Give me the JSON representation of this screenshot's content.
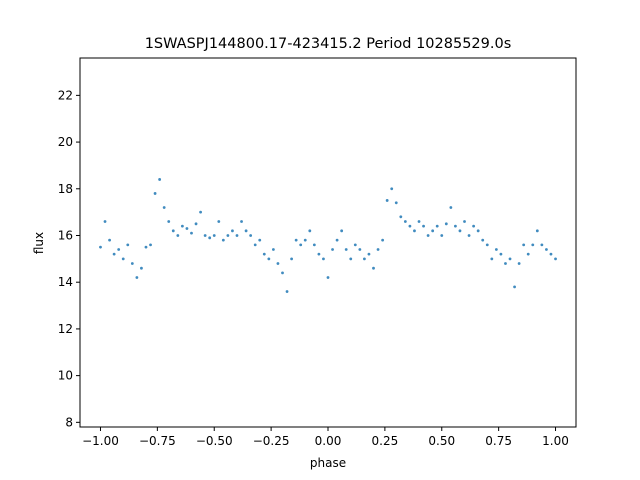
{
  "chart_data": {
    "type": "scatter",
    "title": "1SWASPJ144800.17-423415.2 Period 10285529.0s",
    "xlabel": "phase",
    "ylabel": "flux",
    "xlim": [
      -1.09,
      1.09
    ],
    "ylim": [
      7.8,
      23.6
    ],
    "xticks": [
      -1.0,
      -0.75,
      -0.5,
      -0.25,
      0.0,
      0.25,
      0.5,
      0.75,
      1.0
    ],
    "xtick_labels": [
      "−1.00",
      "−0.75",
      "−0.50",
      "−0.25",
      "0.00",
      "0.25",
      "0.50",
      "0.75",
      "1.00"
    ],
    "yticks": [
      8,
      10,
      12,
      14,
      16,
      18,
      20,
      22
    ],
    "ytick_labels": [
      "8",
      "10",
      "12",
      "14",
      "16",
      "18",
      "20",
      "22"
    ],
    "grid": false,
    "marker_color": "#1f77b4",
    "series": [
      {
        "x": [
          -1.0,
          -0.98,
          -0.96,
          -0.94,
          -0.92,
          -0.9,
          -0.88,
          -0.86,
          -0.84,
          -0.82,
          -0.8,
          -0.78,
          -0.76,
          -0.74,
          -0.72,
          -0.7,
          -0.68,
          -0.66,
          -0.64,
          -0.62,
          -0.6,
          -0.58,
          -0.56,
          -0.54,
          -0.52,
          -0.5,
          -0.48,
          -0.46,
          -0.44,
          -0.42,
          -0.4,
          -0.38,
          -0.36,
          -0.34,
          -0.32,
          -0.3,
          -0.28,
          -0.26,
          -0.24,
          -0.22,
          -0.2,
          -0.18,
          -0.16,
          -0.14,
          -0.12,
          -0.1,
          -0.08,
          -0.06,
          -0.04,
          -0.02,
          0.0,
          0.02,
          0.04,
          0.06,
          0.08,
          0.1,
          0.12,
          0.14,
          0.16,
          0.18,
          0.2,
          0.22,
          0.24,
          0.26,
          0.28,
          0.3,
          0.32,
          0.34,
          0.36,
          0.38,
          0.4,
          0.42,
          0.44,
          0.46,
          0.48,
          0.5,
          0.52,
          0.54,
          0.56,
          0.58,
          0.6,
          0.62,
          0.64,
          0.66,
          0.68,
          0.7,
          0.72,
          0.74,
          0.76,
          0.78,
          0.8,
          0.82,
          0.84,
          0.86,
          0.88,
          0.9,
          0.92,
          0.94,
          0.96,
          0.98,
          1.0
        ],
        "y": [
          15.5,
          16.6,
          15.8,
          15.2,
          15.4,
          15.0,
          15.6,
          14.8,
          14.2,
          14.6,
          15.5,
          15.6,
          17.8,
          18.4,
          17.2,
          16.6,
          16.2,
          16.0,
          16.4,
          16.3,
          16.1,
          16.5,
          17.0,
          16.0,
          15.9,
          16.0,
          16.6,
          15.8,
          16.0,
          16.2,
          16.0,
          16.6,
          16.2,
          16.0,
          15.6,
          15.8,
          15.2,
          15.0,
          15.4,
          14.8,
          14.4,
          13.6,
          15.0,
          15.8,
          15.6,
          15.8,
          16.2,
          15.6,
          15.2,
          15.0,
          14.2,
          15.4,
          15.8,
          16.2,
          15.4,
          15.0,
          15.6,
          15.4,
          15.0,
          15.2,
          14.6,
          15.4,
          15.8,
          17.5,
          18.0,
          17.4,
          16.8,
          16.6,
          16.4,
          16.2,
          16.6,
          16.4,
          16.0,
          16.2,
          16.4,
          16.0,
          16.5,
          17.2,
          16.4,
          16.2,
          16.6,
          16.0,
          16.4,
          16.2,
          15.8,
          15.6,
          15.0,
          15.4,
          15.2,
          14.8,
          15.0,
          13.8,
          14.8,
          15.6,
          15.2,
          15.6,
          16.2,
          15.6,
          15.4,
          15.2,
          15.0
        ]
      }
    ]
  }
}
